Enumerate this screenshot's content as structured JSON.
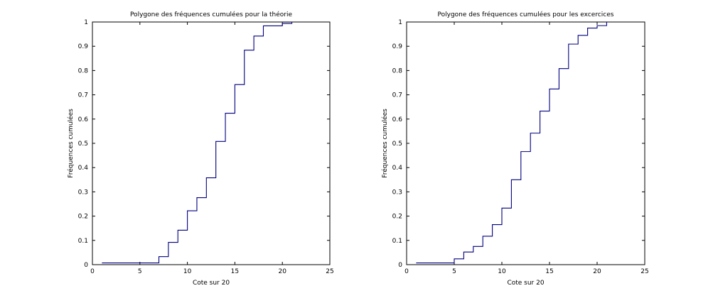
{
  "chart_data": [
    {
      "type": "line",
      "step": true,
      "title": "Polygone des fréquences cumulées pour la théorie",
      "xlabel": "Cote sur 20",
      "ylabel": "Fréquences cumulées",
      "xlim": [
        0,
        25
      ],
      "ylim": [
        0,
        1
      ],
      "xticks": [
        0,
        5,
        10,
        15,
        20,
        25
      ],
      "yticks": [
        0,
        0.1,
        0.2,
        0.3,
        0.4,
        0.5,
        0.6,
        0.7,
        0.8,
        0.9,
        1
      ],
      "grid": false,
      "color": "#00007f",
      "x": [
        1,
        2,
        3,
        4,
        5,
        6,
        7,
        8,
        9,
        10,
        11,
        12,
        13,
        14,
        15,
        16,
        17,
        18,
        19,
        20,
        21
      ],
      "y": [
        0.007,
        0.007,
        0.007,
        0.007,
        0.007,
        0.007,
        0.033,
        0.092,
        0.142,
        0.222,
        0.276,
        0.358,
        0.508,
        0.624,
        0.742,
        0.884,
        0.942,
        0.984,
        0.984,
        0.994,
        1.0
      ]
    },
    {
      "type": "line",
      "step": true,
      "title": "Polygone des fréquences cumulées pour les excercices",
      "xlabel": "Cote sur 20",
      "ylabel": "Fréquences cumulées",
      "xlim": [
        0,
        25
      ],
      "ylim": [
        0,
        1
      ],
      "xticks": [
        0,
        5,
        10,
        15,
        20,
        25
      ],
      "yticks": [
        0,
        0.1,
        0.2,
        0.3,
        0.4,
        0.5,
        0.6,
        0.7,
        0.8,
        0.9,
        1
      ],
      "grid": false,
      "color": "#00007f",
      "x": [
        1,
        2,
        3,
        4,
        5,
        6,
        7,
        8,
        9,
        10,
        11,
        12,
        13,
        14,
        15,
        16,
        17,
        18,
        19,
        20,
        21
      ],
      "y": [
        0.007,
        0.007,
        0.007,
        0.007,
        0.024,
        0.052,
        0.075,
        0.117,
        0.165,
        0.233,
        0.35,
        0.466,
        0.542,
        0.633,
        0.724,
        0.808,
        0.909,
        0.945,
        0.975,
        0.985,
        1.0
      ]
    }
  ]
}
